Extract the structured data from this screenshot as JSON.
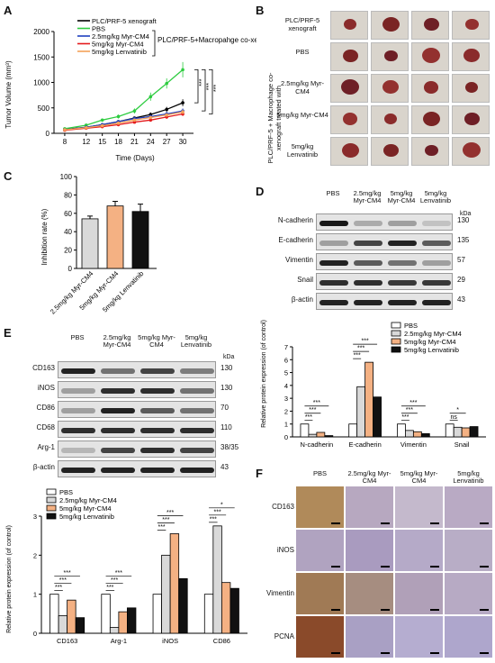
{
  "panels": {
    "A": {
      "label": "A",
      "chart_data": {
        "type": "line",
        "xlabel": "Time (Days)",
        "ylabel": "Tumor Volume (mm³)",
        "ylim": [
          0,
          2000
        ],
        "yticks": [
          0,
          500,
          1000,
          1500,
          2000
        ],
        "x": [
          8,
          12,
          15,
          18,
          21,
          24,
          27,
          30
        ],
        "xticks": [
          "8",
          "12",
          "15",
          "18",
          "21",
          "24",
          "27",
          "30"
        ],
        "group_bracket_label": "PLC/PRF-5+Macropahge co-xenograft",
        "significance": [
          "***",
          "***",
          "***"
        ],
        "series": [
          {
            "name": "PLC/PRF-5 xenograft",
            "color": "#000000",
            "values": [
              80,
              120,
              170,
              230,
              300,
              370,
              470,
              600
            ],
            "error": [
              10,
              15,
              20,
              25,
              30,
              40,
              50,
              70
            ]
          },
          {
            "name": "PBS",
            "color": "#2ecc40",
            "values": [
              90,
              160,
              260,
              330,
              440,
              720,
              980,
              1250
            ],
            "error": [
              10,
              20,
              30,
              40,
              50,
              80,
              100,
              150
            ]
          },
          {
            "name": "2.5mg/kg Myr-CM4",
            "color": "#1f3fbf",
            "values": [
              70,
              120,
              170,
              230,
              290,
              330,
              380,
              440
            ],
            "error": [
              10,
              15,
              20,
              25,
              30,
              35,
              40,
              50
            ]
          },
          {
            "name": "5mg/kg Myr-CM4",
            "color": "#e41a1c",
            "values": [
              60,
              100,
              130,
              170,
              220,
              260,
              320,
              380
            ],
            "error": [
              10,
              12,
              15,
              20,
              25,
              30,
              35,
              40
            ]
          },
          {
            "name": "5mg/kg Lenvatinib",
            "color": "#f4a259",
            "values": [
              70,
              110,
              150,
              200,
              260,
              310,
              360,
              420
            ],
            "error": [
              10,
              12,
              15,
              20,
              25,
              30,
              35,
              45
            ]
          }
        ]
      }
    },
    "B": {
      "label": "B",
      "rows": [
        {
          "label": "PLC/PRF-5 xenograft"
        },
        {
          "label": "PBS"
        },
        {
          "label": "2.5mg/kg Myr-CM4"
        },
        {
          "label": "5mg/kg Myr-CM4"
        },
        {
          "label": "5mg/kg Lenvatinib"
        }
      ],
      "side_label": "PLC/PRF-5 + Macrophage co-xenograft treated with"
    },
    "C": {
      "label": "C",
      "chart_data": {
        "type": "bar",
        "ylabel": "Inhibition rate (%)",
        "ylim": [
          0,
          100
        ],
        "yticks": [
          0,
          20,
          40,
          60,
          80,
          100
        ],
        "categories": [
          "2.5mg/kg Myr-CM4",
          "5mg/kg Myr-CM4",
          "5mg/kg Lenvatinib"
        ],
        "values": [
          54,
          68,
          62
        ],
        "error": [
          3,
          5,
          8
        ],
        "colors": [
          "#d9d9d9",
          "#f4b183",
          "#111111"
        ]
      }
    },
    "D": {
      "label": "D",
      "columns": [
        "PBS",
        "2.5mg/kg Myr-CM4",
        "5mg/kg Myr-CM4",
        "5mg/kg Lenvatinib"
      ],
      "kda_header": "kDa",
      "bands": [
        {
          "name": "N-cadherin",
          "kda": "130"
        },
        {
          "name": "E-cadherin",
          "kda": "135"
        },
        {
          "name": "Vimentin",
          "kda": "57"
        },
        {
          "name": "Snail",
          "kda": "29"
        },
        {
          "name": "β-actin",
          "kda": "43"
        }
      ],
      "chart_data": {
        "type": "bar",
        "ylabel": "Relative protein expression (of control)",
        "ylim": [
          0,
          7
        ],
        "yticks": [
          0,
          1,
          2,
          3,
          4,
          5,
          6,
          7
        ],
        "categories": [
          "N-cadherin",
          "E-cadherin",
          "Vimentin",
          "Snail"
        ],
        "series": [
          {
            "name": "PBS",
            "color": "#ffffff",
            "values": [
              1.0,
              1.0,
              1.0,
              1.0
            ]
          },
          {
            "name": "2.5mg/kg Myr-CM4",
            "color": "#d9d9d9",
            "values": [
              0.2,
              3.9,
              0.5,
              0.75
            ]
          },
          {
            "name": "5mg/kg Myr-CM4",
            "color": "#f4b183",
            "values": [
              0.35,
              5.8,
              0.4,
              0.7
            ]
          },
          {
            "name": "5mg/kg Lenvatinib",
            "color": "#111111",
            "values": [
              0.1,
              3.1,
              0.25,
              0.8
            ]
          }
        ],
        "significance": [
          "***",
          "***",
          "***",
          "***",
          "***",
          "***",
          "***",
          "***",
          "***",
          "ns",
          "*"
        ]
      }
    },
    "E": {
      "label": "E",
      "columns": [
        "PBS",
        "2.5mg/kg Myr-CM4",
        "5mg/kg Myr-CM4",
        "5mg/kg Lenvatinib"
      ],
      "kda_header": "kDa",
      "bands": [
        {
          "name": "CD163",
          "kda": "130"
        },
        {
          "name": "iNOS",
          "kda": "130"
        },
        {
          "name": "CD86",
          "kda": "70"
        },
        {
          "name": "CD68",
          "kda": "110"
        },
        {
          "name": "Arg-1",
          "kda": "38/35"
        },
        {
          "name": "β-actin",
          "kda": "43"
        }
      ],
      "chart_data": {
        "type": "bar",
        "ylabel": "Relative protein expression (of control)",
        "ylim": [
          0,
          3
        ],
        "yticks": [
          0,
          1,
          2,
          3
        ],
        "categories": [
          "CD163",
          "Arg-1",
          "iNOS",
          "CD86"
        ],
        "series": [
          {
            "name": "PBS",
            "color": "#ffffff",
            "values": [
              1.0,
              1.0,
              1.0,
              1.0
            ]
          },
          {
            "name": "2.5mg/kg Myr-CM4",
            "color": "#d9d9d9",
            "values": [
              0.45,
              0.15,
              2.0,
              2.75
            ]
          },
          {
            "name": "5mg/kg Myr-CM4",
            "color": "#f4b183",
            "values": [
              0.85,
              0.55,
              2.55,
              1.3
            ]
          },
          {
            "name": "5mg/kg Lenvatinib",
            "color": "#111111",
            "values": [
              0.4,
              0.65,
              1.4,
              1.15
            ]
          }
        ],
        "significance": [
          "***",
          "***",
          "***",
          "***",
          "***",
          "***",
          "***",
          "***",
          "***",
          "***",
          "***",
          "*"
        ]
      }
    },
    "F": {
      "label": "F",
      "columns": [
        "PBS",
        "2.5mg/kg Myr-CM4",
        "5mg/kg Myr-CM4",
        "5mg/kg Lenvatinib"
      ],
      "rows": [
        {
          "name": "CD163"
        },
        {
          "name": "iNOS"
        },
        {
          "name": "Vimentin"
        },
        {
          "name": "PCNA"
        }
      ]
    }
  }
}
